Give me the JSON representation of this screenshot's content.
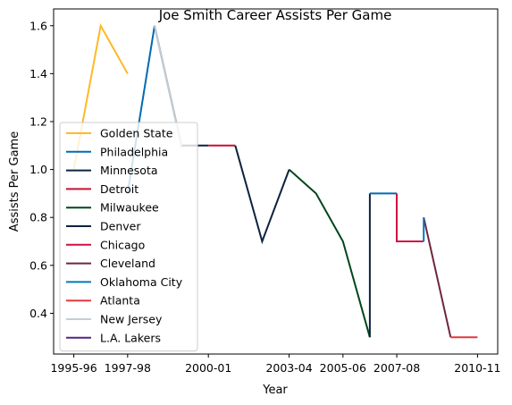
{
  "chart_data": {
    "type": "line",
    "title": "Joe Smith  Career Assists Per Game",
    "xlabel": "Year",
    "ylabel": "Assists Per Game",
    "x_ticks": [
      "1995-96",
      "1997-98",
      "2000-01",
      "2003-04",
      "2005-06",
      "2007-08",
      "2010-11"
    ],
    "y_ticks": [
      "0.4",
      "0.6",
      "0.8",
      "1.0",
      "1.2",
      "1.4",
      "1.6"
    ],
    "xlim": [
      -0.75,
      15.75
    ],
    "ylim": [
      0.23,
      1.67
    ],
    "grid": false,
    "legend_position": "lower-left",
    "series": [
      {
        "name": "Golden State",
        "color": "#FDB927",
        "points": [
          {
            "x": "1995-96",
            "y": 1.0
          },
          {
            "x": "1996-97",
            "y": 1.6
          },
          {
            "x": "1997-98",
            "y": 1.4
          }
        ]
      },
      {
        "name": "Philadelphia",
        "color": "#006BB6",
        "points": [
          {
            "x": "1997-98",
            "y": 0.9
          },
          {
            "x": "1998-99",
            "y": 1.6
          }
        ]
      },
      {
        "name": "Minnesota",
        "color": "#0C2340",
        "points": [
          {
            "x": "1998-99",
            "y": 1.6
          },
          {
            "x": "1999-00",
            "y": 1.1
          },
          {
            "x": "2000-01",
            "y": 1.1
          }
        ]
      },
      {
        "name": "Detroit",
        "color": "#C8102E",
        "points": [
          {
            "x": "2000-01",
            "y": 1.1
          },
          {
            "x": "2001-02",
            "y": 1.1
          }
        ]
      },
      {
        "name": "Minnesota",
        "color": "#0C2340",
        "points": [
          {
            "x": "2001-02",
            "y": 1.1
          },
          {
            "x": "2002-03",
            "y": 0.7
          },
          {
            "x": "2003-04",
            "y": 1.0
          }
        ]
      },
      {
        "name": "Milwaukee",
        "color": "#00471B",
        "points": [
          {
            "x": "2003-04",
            "y": 1.0
          },
          {
            "x": "2004-05",
            "y": 0.9
          },
          {
            "x": "2005-06",
            "y": 0.7
          },
          {
            "x": "2006-07",
            "y": 0.3
          }
        ]
      },
      {
        "name": "Denver",
        "color": "#0E2240",
        "points": [
          {
            "x": "2006-07",
            "y": 0.3
          },
          {
            "x": "2006-07",
            "y": 0.9
          }
        ]
      },
      {
        "name": "Philadelphia",
        "color": "#006BB6",
        "points": [
          {
            "x": "2006-07",
            "y": 0.9
          },
          {
            "x": "2007-08",
            "y": 0.9
          }
        ]
      },
      {
        "name": "Chicago",
        "color": "#CE1141",
        "points": [
          {
            "x": "2007-08",
            "y": 0.9
          },
          {
            "x": "2007-08",
            "y": 0.7
          },
          {
            "x": "2008-09",
            "y": 0.7
          }
        ]
      },
      {
        "name": "Cleveland",
        "color": "#6F263D",
        "points": [
          {
            "x": "2008-09",
            "y": 0.8
          },
          {
            "x": "2009-10",
            "y": 0.3
          }
        ]
      },
      {
        "name": "Oklahoma City",
        "color": "#007AC1",
        "points": [
          {
            "x": "2008-09",
            "y": 0.7
          },
          {
            "x": "2008-09",
            "y": 0.8
          }
        ]
      },
      {
        "name": "Atlanta",
        "color": "#E03A3E",
        "points": [
          {
            "x": "2009-10",
            "y": 0.3
          },
          {
            "x": "2010-11",
            "y": 0.3
          }
        ]
      },
      {
        "name": "New Jersey",
        "color": "#C4CED4",
        "points": [
          {
            "x": "1998-99",
            "y": 1.6
          },
          {
            "x": "1999-00",
            "y": 1.1
          }
        ]
      },
      {
        "name": "L.A. Lakers",
        "color": "#552583",
        "points": []
      }
    ],
    "legend": [
      {
        "label": "Golden State",
        "color": "#FDB927"
      },
      {
        "label": "Philadelphia",
        "color": "#006BB6"
      },
      {
        "label": "Minnesota",
        "color": "#0C2340"
      },
      {
        "label": "Detroit",
        "color": "#C8102E"
      },
      {
        "label": "Milwaukee",
        "color": "#00471B"
      },
      {
        "label": "Denver",
        "color": "#0E2240"
      },
      {
        "label": "Chicago",
        "color": "#CE1141"
      },
      {
        "label": "Cleveland",
        "color": "#6F263D"
      },
      {
        "label": "Oklahoma City",
        "color": "#007AC1"
      },
      {
        "label": "Atlanta",
        "color": "#E03A3E"
      },
      {
        "label": "New Jersey",
        "color": "#C4CED4"
      },
      {
        "label": "L.A. Lakers",
        "color": "#552583"
      }
    ]
  }
}
